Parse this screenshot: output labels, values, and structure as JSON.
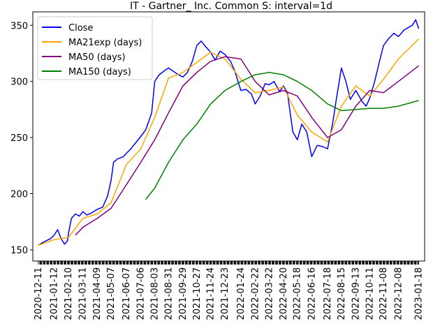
{
  "chart_data": {
    "type": "line",
    "title": "IT - Gartner_ Inc. Common S: interval=1d",
    "xlabel": "",
    "ylabel": "",
    "x_tick_labels": [
      "2020-12-11",
      "2021-01-12",
      "2021-02-10",
      "2021-03-11",
      "2021-04-09",
      "2021-05-07",
      "2021-06-07",
      "2021-07-06",
      "2021-08-03",
      "2021-08-31",
      "2021-09-29",
      "2021-10-27",
      "2021-11-24",
      "2021-12-23",
      "2022-01-24",
      "2022-02-22",
      "2022-03-22",
      "2022-04-20",
      "2022-05-18",
      "2022-06-16",
      "2022-07-18",
      "2022-08-15",
      "2022-09-13",
      "2022-10-11",
      "2022-11-08",
      "2022-12-08",
      "2023-01-18"
    ],
    "y_ticks": [
      150,
      200,
      250,
      300,
      350
    ],
    "ylim": [
      140,
      362
    ],
    "xlim": [
      "2020-11-30",
      "2023-01-30"
    ],
    "grid": false,
    "legend_position": "upper left",
    "series": [
      {
        "name": "Close",
        "color": "#0000ff",
        "points": [
          [
            "2020-12-11",
            154
          ],
          [
            "2020-12-22",
            157
          ],
          [
            "2021-01-05",
            160
          ],
          [
            "2021-01-12",
            163
          ],
          [
            "2021-01-19",
            168
          ],
          [
            "2021-01-26",
            160
          ],
          [
            "2021-02-02",
            155
          ],
          [
            "2021-02-08",
            158
          ],
          [
            "2021-02-10",
            165
          ],
          [
            "2021-02-16",
            178
          ],
          [
            "2021-02-24",
            182
          ],
          [
            "2021-03-04",
            180
          ],
          [
            "2021-03-11",
            184
          ],
          [
            "2021-03-19",
            181
          ],
          [
            "2021-03-29",
            183
          ],
          [
            "2021-04-09",
            186
          ],
          [
            "2021-04-20",
            188
          ],
          [
            "2021-04-30",
            198
          ],
          [
            "2021-05-07",
            212
          ],
          [
            "2021-05-12",
            228
          ],
          [
            "2021-05-20",
            231
          ],
          [
            "2021-06-01",
            233
          ],
          [
            "2021-06-07",
            236
          ],
          [
            "2021-06-16",
            240
          ],
          [
            "2021-06-25",
            245
          ],
          [
            "2021-07-06",
            251
          ],
          [
            "2021-07-16",
            257
          ],
          [
            "2021-07-28",
            272
          ],
          [
            "2021-08-03",
            300
          ],
          [
            "2021-08-12",
            306
          ],
          [
            "2021-08-24",
            310
          ],
          [
            "2021-08-31",
            312
          ],
          [
            "2021-09-10",
            309
          ],
          [
            "2021-09-20",
            306
          ],
          [
            "2021-09-29",
            304
          ],
          [
            "2021-10-08",
            308
          ],
          [
            "2021-10-18",
            318
          ],
          [
            "2021-10-27",
            332
          ],
          [
            "2021-11-05",
            336
          ],
          [
            "2021-11-12",
            332
          ],
          [
            "2021-11-24",
            326
          ],
          [
            "2021-12-03",
            319
          ],
          [
            "2021-12-13",
            327
          ],
          [
            "2021-12-23",
            324
          ],
          [
            "2022-01-03",
            318
          ],
          [
            "2022-01-11",
            310
          ],
          [
            "2022-01-24",
            292
          ],
          [
            "2022-02-03",
            293
          ],
          [
            "2022-02-14",
            289
          ],
          [
            "2022-02-22",
            280
          ],
          [
            "2022-03-04",
            287
          ],
          [
            "2022-03-14",
            298
          ],
          [
            "2022-03-22",
            297
          ],
          [
            "2022-04-01",
            300
          ],
          [
            "2022-04-12",
            291
          ],
          [
            "2022-04-20",
            296
          ],
          [
            "2022-04-28",
            290
          ],
          [
            "2022-05-09",
            255
          ],
          [
            "2022-05-18",
            248
          ],
          [
            "2022-05-27",
            262
          ],
          [
            "2022-06-06",
            255
          ],
          [
            "2022-06-16",
            233
          ],
          [
            "2022-06-27",
            243
          ],
          [
            "2022-07-08",
            242
          ],
          [
            "2022-07-18",
            240
          ],
          [
            "2022-07-28",
            262
          ],
          [
            "2022-08-05",
            285
          ],
          [
            "2022-08-15",
            312
          ],
          [
            "2022-08-24",
            300
          ],
          [
            "2022-09-02",
            284
          ],
          [
            "2022-09-13",
            292
          ],
          [
            "2022-09-26",
            282
          ],
          [
            "2022-10-04",
            278
          ],
          [
            "2022-10-11",
            285
          ],
          [
            "2022-10-21",
            300
          ],
          [
            "2022-11-01",
            320
          ],
          [
            "2022-11-08",
            332
          ],
          [
            "2022-11-18",
            338
          ],
          [
            "2022-11-29",
            343
          ],
          [
            "2022-12-08",
            340
          ],
          [
            "2022-12-20",
            346
          ],
          [
            "2023-01-05",
            350
          ],
          [
            "2023-01-12",
            355
          ],
          [
            "2023-01-18",
            347
          ]
        ]
      },
      {
        "name": "MA21exp (days)",
        "color": "#ffa500",
        "points": [
          [
            "2020-12-11",
            154
          ],
          [
            "2021-01-12",
            159
          ],
          [
            "2021-02-10",
            161
          ],
          [
            "2021-03-11",
            178
          ],
          [
            "2021-04-09",
            182
          ],
          [
            "2021-05-07",
            192
          ],
          [
            "2021-06-07",
            226
          ],
          [
            "2021-07-06",
            240
          ],
          [
            "2021-08-03",
            268
          ],
          [
            "2021-08-31",
            303
          ],
          [
            "2021-09-29",
            308
          ],
          [
            "2021-10-27",
            317
          ],
          [
            "2021-11-24",
            326
          ],
          [
            "2021-12-23",
            320
          ],
          [
            "2022-01-24",
            302
          ],
          [
            "2022-02-22",
            290
          ],
          [
            "2022-03-22",
            292
          ],
          [
            "2022-04-20",
            295
          ],
          [
            "2022-05-18",
            270
          ],
          [
            "2022-06-16",
            255
          ],
          [
            "2022-07-18",
            246
          ],
          [
            "2022-08-15",
            278
          ],
          [
            "2022-09-13",
            296
          ],
          [
            "2022-10-11",
            287
          ],
          [
            "2022-11-08",
            302
          ],
          [
            "2022-12-08",
            320
          ],
          [
            "2023-01-18",
            338
          ]
        ]
      },
      {
        "name": "MA50 (days)",
        "color": "#800080",
        "points": [
          [
            "2021-02-24",
            163
          ],
          [
            "2021-03-11",
            170
          ],
          [
            "2021-04-09",
            178
          ],
          [
            "2021-05-07",
            187
          ],
          [
            "2021-06-07",
            208
          ],
          [
            "2021-07-06",
            228
          ],
          [
            "2021-08-03",
            248
          ],
          [
            "2021-08-31",
            272
          ],
          [
            "2021-09-29",
            296
          ],
          [
            "2021-10-27",
            308
          ],
          [
            "2021-11-24",
            318
          ],
          [
            "2021-12-23",
            322
          ],
          [
            "2022-01-24",
            320
          ],
          [
            "2022-02-22",
            300
          ],
          [
            "2022-03-22",
            288
          ],
          [
            "2022-04-20",
            292
          ],
          [
            "2022-05-18",
            287
          ],
          [
            "2022-06-16",
            268
          ],
          [
            "2022-07-18",
            250
          ],
          [
            "2022-08-15",
            257
          ],
          [
            "2022-09-13",
            278
          ],
          [
            "2022-10-11",
            292
          ],
          [
            "2022-11-08",
            290
          ],
          [
            "2022-12-08",
            300
          ],
          [
            "2023-01-18",
            314
          ]
        ]
      },
      {
        "name": "MA150 (days)",
        "color": "#008000",
        "points": [
          [
            "2021-07-16",
            195
          ],
          [
            "2021-08-03",
            205
          ],
          [
            "2021-08-31",
            228
          ],
          [
            "2021-09-29",
            248
          ],
          [
            "2021-10-27",
            262
          ],
          [
            "2021-11-24",
            280
          ],
          [
            "2021-12-23",
            292
          ],
          [
            "2022-01-24",
            300
          ],
          [
            "2022-02-22",
            306
          ],
          [
            "2022-03-22",
            308
          ],
          [
            "2022-04-20",
            306
          ],
          [
            "2022-05-18",
            300
          ],
          [
            "2022-06-16",
            292
          ],
          [
            "2022-07-18",
            280
          ],
          [
            "2022-08-15",
            274
          ],
          [
            "2022-09-13",
            275
          ],
          [
            "2022-10-11",
            276
          ],
          [
            "2022-11-08",
            276
          ],
          [
            "2022-12-08",
            278
          ],
          [
            "2023-01-18",
            283
          ]
        ]
      }
    ]
  }
}
